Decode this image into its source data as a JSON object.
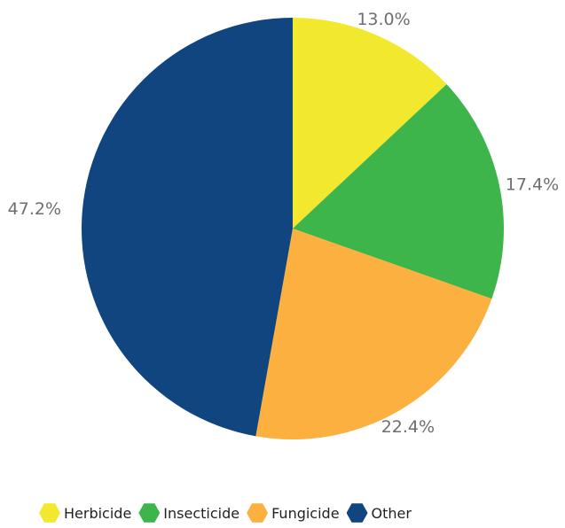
{
  "chart_data": {
    "type": "pie",
    "categories": [
      "Herbicide",
      "Insecticide",
      "Fungicide",
      "Other"
    ],
    "values": [
      13.0,
      17.4,
      22.4,
      47.2
    ],
    "value_labels": [
      "13.0%",
      "17.4%",
      "22.4%",
      "47.2%"
    ],
    "colors": [
      "#f2e92e",
      "#3db54a",
      "#fbb040",
      "#104580"
    ],
    "start_angle": "12 o'clock",
    "direction": "clockwise",
    "legend": "bottom"
  },
  "legend": {
    "items": [
      {
        "label": "Herbicide",
        "color": "#f2e92e"
      },
      {
        "label": "Insecticide",
        "color": "#3db54a"
      },
      {
        "label": "Fungicide",
        "color": "#fbb040"
      },
      {
        "label": "Other",
        "color": "#104580"
      }
    ]
  }
}
